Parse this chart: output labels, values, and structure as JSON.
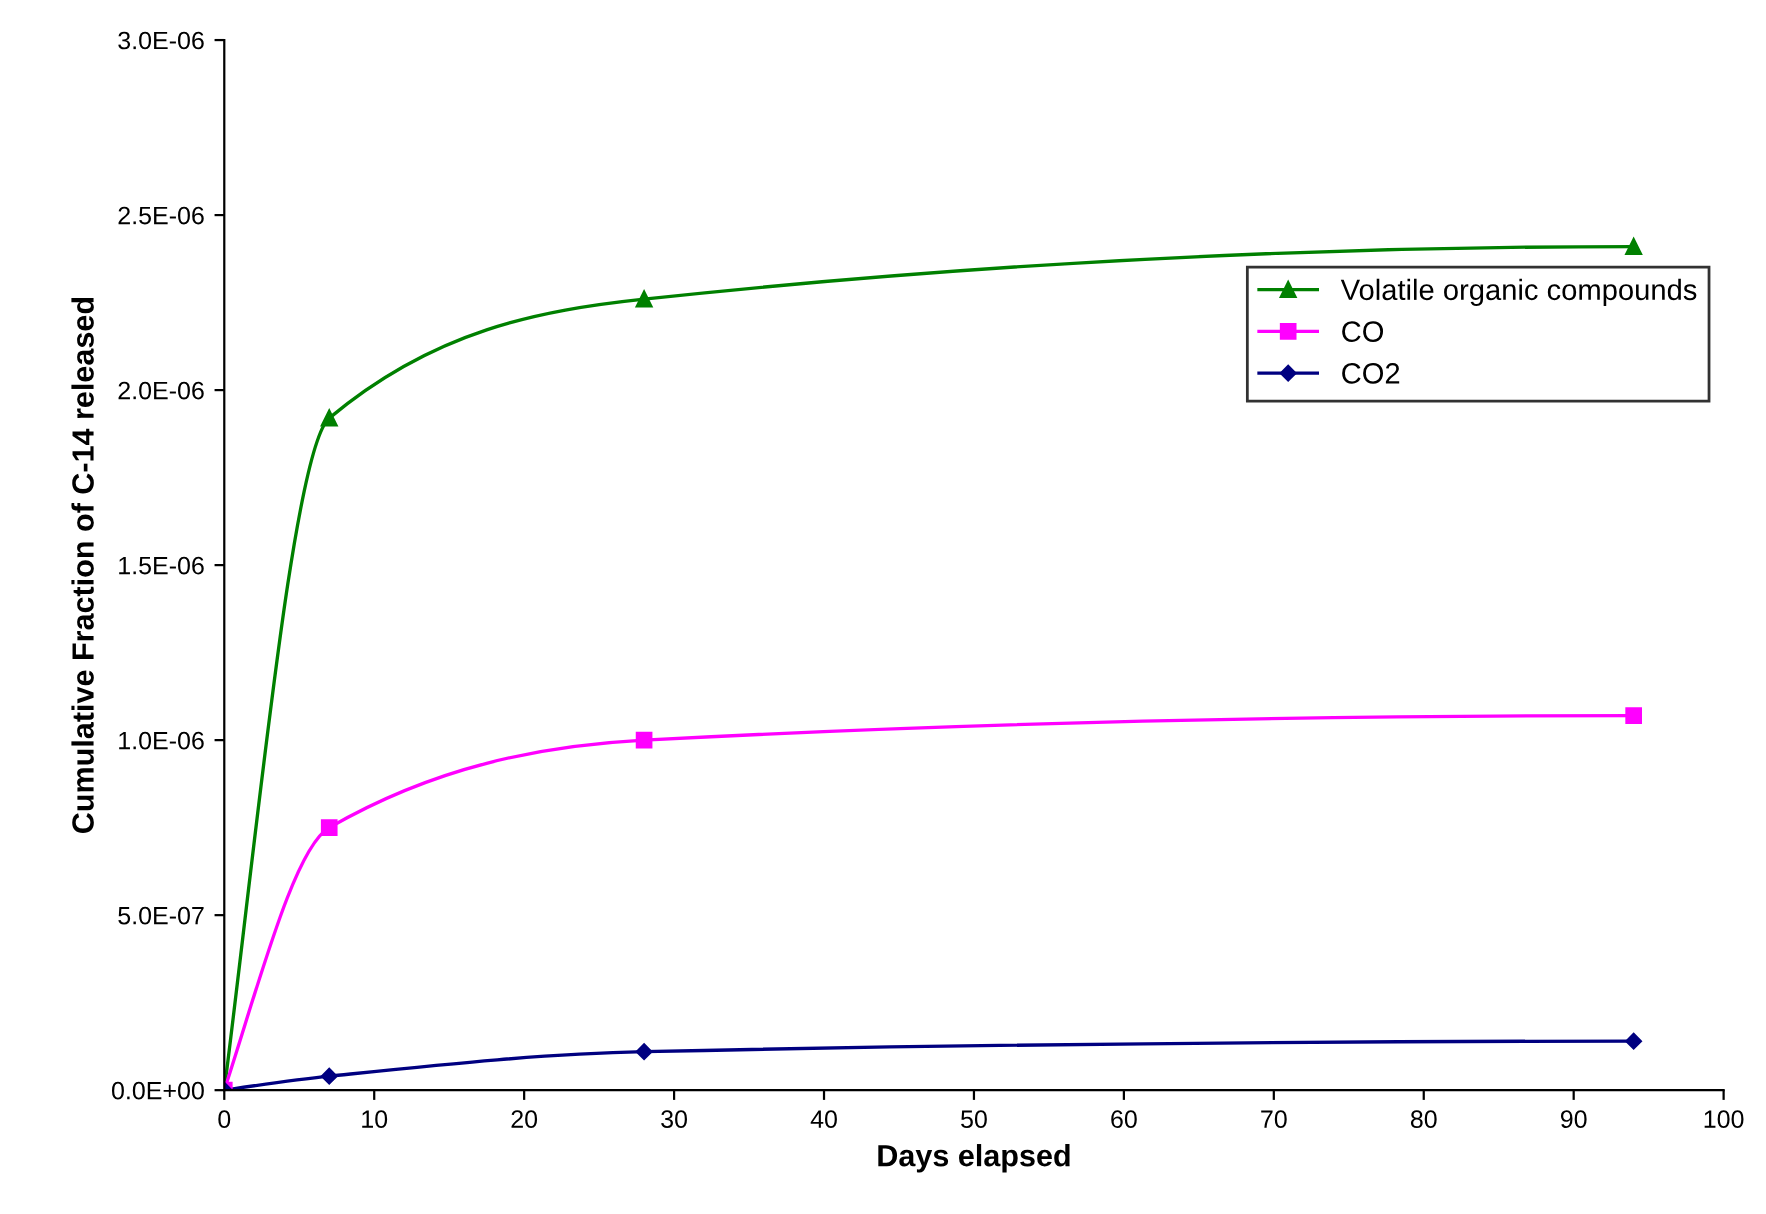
{
  "chart_data": {
    "type": "line",
    "xlabel": "Days elapsed",
    "ylabel": "Cumulative Fraction of C-14 released",
    "x": [
      0,
      7,
      28,
      94
    ],
    "series": [
      {
        "name": "Volatile organic compounds",
        "color": "#008000",
        "marker": "triangle",
        "values": [
          0,
          1.92e-06,
          2.26e-06,
          2.41e-06
        ]
      },
      {
        "name": "CO",
        "color": "#ff00ff",
        "marker": "square",
        "values": [
          0,
          7.5e-07,
          1e-06,
          1.07e-06
        ]
      },
      {
        "name": "CO2",
        "color": "#000080",
        "marker": "diamond",
        "values": [
          0,
          4e-08,
          1.1e-07,
          1.4e-07
        ]
      }
    ],
    "xlim": [
      0,
      100
    ],
    "xticks": [
      0,
      10,
      20,
      30,
      40,
      50,
      60,
      70,
      80,
      90,
      100
    ],
    "ylim": [
      0,
      3e-06
    ],
    "yticks": [
      {
        "value": 0,
        "label": "0.0E+00"
      },
      {
        "value": 5e-07,
        "label": "5.0E-07"
      },
      {
        "value": 1e-06,
        "label": "1.0E-06"
      },
      {
        "value": 1.5e-06,
        "label": "1.5E-06"
      },
      {
        "value": 2e-06,
        "label": "2.0E-06"
      },
      {
        "value": 2.5e-06,
        "label": "2.5E-06"
      },
      {
        "value": 3e-06,
        "label": "3.0E-06"
      }
    ],
    "grid": false,
    "legend": "right",
    "line_style": "solid"
  }
}
